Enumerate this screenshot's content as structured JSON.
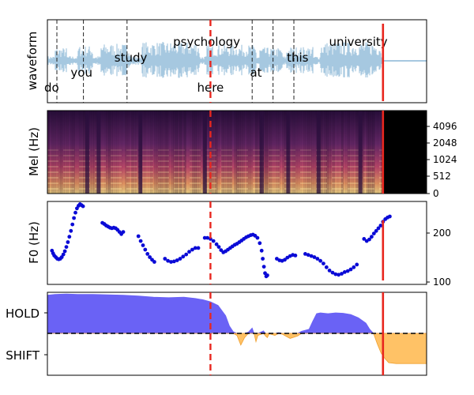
{
  "panels": {
    "waveform": {
      "ylabel": "waveform"
    },
    "mel": {
      "ylabel": "Mel (Hz)",
      "yticks": [
        "0",
        "512",
        "1024",
        "2048",
        "4096"
      ]
    },
    "f0": {
      "ylabel": "F0 (Hz)",
      "yticks": [
        "100",
        "200"
      ]
    },
    "turn": {
      "yticks": [
        "HOLD",
        "SHIFT"
      ]
    }
  },
  "colors": {
    "waveform": "#a6c8e0",
    "hold": "#6a62f5",
    "shift": "#ffc266",
    "f0_points": "#0a0ad6",
    "marker_red": "#e8261e",
    "spectrogram_dark": "#000000"
  },
  "chart_data": {
    "type": "multi-panel",
    "time_axis": {
      "xlim": [
        0,
        1
      ],
      "xticks": []
    },
    "current_time_marker": {
      "x": 0.43,
      "style": "dashed",
      "color": "red"
    },
    "end_marker": {
      "x": 0.885,
      "style": "solid",
      "color": "red"
    },
    "words": [
      {
        "text": "do",
        "x": 0.025,
        "row": "bottom"
      },
      {
        "text": "you",
        "x": 0.09,
        "row": "middle"
      },
      {
        "text": "study",
        "x": 0.22,
        "row": "upper"
      },
      {
        "text": "psychology",
        "x": 0.42,
        "row": "top"
      },
      {
        "text": "here",
        "x": 0.43,
        "row": "bottom"
      },
      {
        "text": "at",
        "x": 0.55,
        "row": "middle"
      },
      {
        "text": "this",
        "x": 0.66,
        "row": "upper"
      },
      {
        "text": "university",
        "x": 0.82,
        "row": "top"
      }
    ],
    "word_boundaries": [
      0.025,
      0.095,
      0.21,
      0.54,
      0.595,
      0.65
    ],
    "mel_spectrogram": {
      "type": "heatmap",
      "active_until": 0.885,
      "yticks_hz": [
        0,
        512,
        1024,
        2048,
        4096
      ]
    },
    "f0": {
      "type": "scatter",
      "ylabel": "F0 (Hz)",
      "ylim": [
        95,
        250
      ],
      "points": [
        [
          0.012,
          158
        ],
        [
          0.015,
          153
        ],
        [
          0.018,
          149
        ],
        [
          0.022,
          146
        ],
        [
          0.026,
          143
        ],
        [
          0.03,
          142
        ],
        [
          0.034,
          143
        ],
        [
          0.038,
          146
        ],
        [
          0.042,
          151
        ],
        [
          0.046,
          157
        ],
        [
          0.05,
          165
        ],
        [
          0.054,
          174
        ],
        [
          0.058,
          184
        ],
        [
          0.062,
          195
        ],
        [
          0.066,
          207
        ],
        [
          0.07,
          219
        ],
        [
          0.074,
          229
        ],
        [
          0.078,
          237
        ],
        [
          0.082,
          242
        ],
        [
          0.086,
          245
        ],
        [
          0.09,
          243
        ],
        [
          0.094,
          241
        ],
        [
          0.145,
          210
        ],
        [
          0.15,
          208
        ],
        [
          0.155,
          205
        ],
        [
          0.16,
          203
        ],
        [
          0.165,
          201
        ],
        [
          0.17,
          200
        ],
        [
          0.175,
          201
        ],
        [
          0.18,
          200
        ],
        [
          0.185,
          197
        ],
        [
          0.19,
          193
        ],
        [
          0.195,
          189
        ],
        [
          0.2,
          193
        ],
        [
          0.24,
          185
        ],
        [
          0.246,
          176
        ],
        [
          0.252,
          168
        ],
        [
          0.258,
          160
        ],
        [
          0.264,
          152
        ],
        [
          0.27,
          146
        ],
        [
          0.276,
          141
        ],
        [
          0.282,
          137
        ],
        [
          0.31,
          143
        ],
        [
          0.318,
          139
        ],
        [
          0.326,
          137
        ],
        [
          0.334,
          138
        ],
        [
          0.342,
          140
        ],
        [
          0.35,
          143
        ],
        [
          0.358,
          147
        ],
        [
          0.366,
          151
        ],
        [
          0.374,
          156
        ],
        [
          0.382,
          160
        ],
        [
          0.39,
          163
        ],
        [
          0.398,
          163
        ],
        [
          0.415,
          182
        ],
        [
          0.422,
          182
        ],
        [
          0.43,
          180
        ],
        [
          0.438,
          176
        ],
        [
          0.446,
          170
        ],
        [
          0.452,
          165
        ],
        [
          0.458,
          159
        ],
        [
          0.464,
          155
        ],
        [
          0.47,
          157
        ],
        [
          0.476,
          160
        ],
        [
          0.482,
          163
        ],
        [
          0.488,
          166
        ],
        [
          0.494,
          169
        ],
        [
          0.5,
          171
        ],
        [
          0.506,
          174
        ],
        [
          0.512,
          177
        ],
        [
          0.518,
          180
        ],
        [
          0.524,
          183
        ],
        [
          0.53,
          185
        ],
        [
          0.536,
          187
        ],
        [
          0.542,
          188
        ],
        [
          0.548,
          186
        ],
        [
          0.554,
          182
        ],
        [
          0.56,
          172
        ],
        [
          0.565,
          158
        ],
        [
          0.568,
          143
        ],
        [
          0.571,
          128
        ],
        [
          0.574,
          116
        ],
        [
          0.577,
          110
        ],
        [
          0.58,
          112
        ],
        [
          0.605,
          143
        ],
        [
          0.612,
          140
        ],
        [
          0.619,
          139
        ],
        [
          0.626,
          141
        ],
        [
          0.633,
          145
        ],
        [
          0.64,
          148
        ],
        [
          0.647,
          150
        ],
        [
          0.654,
          149
        ],
        [
          0.68,
          152
        ],
        [
          0.688,
          150
        ],
        [
          0.696,
          148
        ],
        [
          0.704,
          146
        ],
        [
          0.712,
          143
        ],
        [
          0.72,
          139
        ],
        [
          0.728,
          134
        ],
        [
          0.736,
          127
        ],
        [
          0.744,
          121
        ],
        [
          0.752,
          117
        ],
        [
          0.76,
          114
        ],
        [
          0.768,
          113
        ],
        [
          0.776,
          115
        ],
        [
          0.784,
          118
        ],
        [
          0.792,
          120
        ],
        [
          0.8,
          123
        ],
        [
          0.808,
          127
        ],
        [
          0.816,
          132
        ],
        [
          0.835,
          180
        ],
        [
          0.842,
          176
        ],
        [
          0.849,
          179
        ],
        [
          0.855,
          184
        ],
        [
          0.861,
          190
        ],
        [
          0.867,
          195
        ],
        [
          0.873,
          200
        ],
        [
          0.879,
          205
        ],
        [
          0.885,
          212
        ],
        [
          0.891,
          217
        ],
        [
          0.897,
          220
        ],
        [
          0.903,
          222
        ]
      ]
    },
    "turn_prediction": {
      "type": "area",
      "ylim": [
        -1,
        1
      ],
      "baseline": 0,
      "yticks": [
        "HOLD",
        "SHIFT"
      ],
      "values": [
        [
          0,
          0.93
        ],
        [
          0.02,
          0.95
        ],
        [
          0.05,
          0.96
        ],
        [
          0.08,
          0.95
        ],
        [
          0.12,
          0.95
        ],
        [
          0.16,
          0.94
        ],
        [
          0.2,
          0.93
        ],
        [
          0.24,
          0.91
        ],
        [
          0.28,
          0.88
        ],
        [
          0.32,
          0.87
        ],
        [
          0.36,
          0.88
        ],
        [
          0.39,
          0.85
        ],
        [
          0.41,
          0.82
        ],
        [
          0.43,
          0.77
        ],
        [
          0.45,
          0.68
        ],
        [
          0.47,
          0.43
        ],
        [
          0.48,
          0.18
        ],
        [
          0.49,
          0.04
        ],
        [
          0.5,
          -0.05
        ],
        [
          0.51,
          -0.28
        ],
        [
          0.52,
          -0.1
        ],
        [
          0.53,
          0.03
        ],
        [
          0.54,
          0.13
        ],
        [
          0.545,
          0.0
        ],
        [
          0.55,
          -0.2
        ],
        [
          0.555,
          -0.05
        ],
        [
          0.57,
          0.06
        ],
        [
          0.575,
          -0.06
        ],
        [
          0.58,
          -0.1
        ],
        [
          0.585,
          -0.01
        ],
        [
          0.6,
          -0.05
        ],
        [
          0.61,
          0.02
        ],
        [
          0.62,
          -0.02
        ],
        [
          0.64,
          -0.12
        ],
        [
          0.66,
          -0.06
        ],
        [
          0.67,
          0.05
        ],
        [
          0.69,
          0.1
        ],
        [
          0.7,
          0.3
        ],
        [
          0.71,
          0.48
        ],
        [
          0.72,
          0.5
        ],
        [
          0.74,
          0.48
        ],
        [
          0.76,
          0.5
        ],
        [
          0.78,
          0.49
        ],
        [
          0.8,
          0.46
        ],
        [
          0.82,
          0.38
        ],
        [
          0.84,
          0.25
        ],
        [
          0.85,
          0.1
        ],
        [
          0.86,
          0.0
        ],
        [
          0.87,
          -0.25
        ],
        [
          0.88,
          -0.47
        ],
        [
          0.89,
          -0.6
        ],
        [
          0.9,
          -0.7
        ],
        [
          0.92,
          -0.72
        ],
        [
          0.94,
          -0.72
        ],
        [
          0.96,
          -0.72
        ],
        [
          1.0,
          -0.72
        ]
      ],
      "threshold_line": {
        "y": 0,
        "style": "dashed",
        "color": "black"
      }
    }
  }
}
